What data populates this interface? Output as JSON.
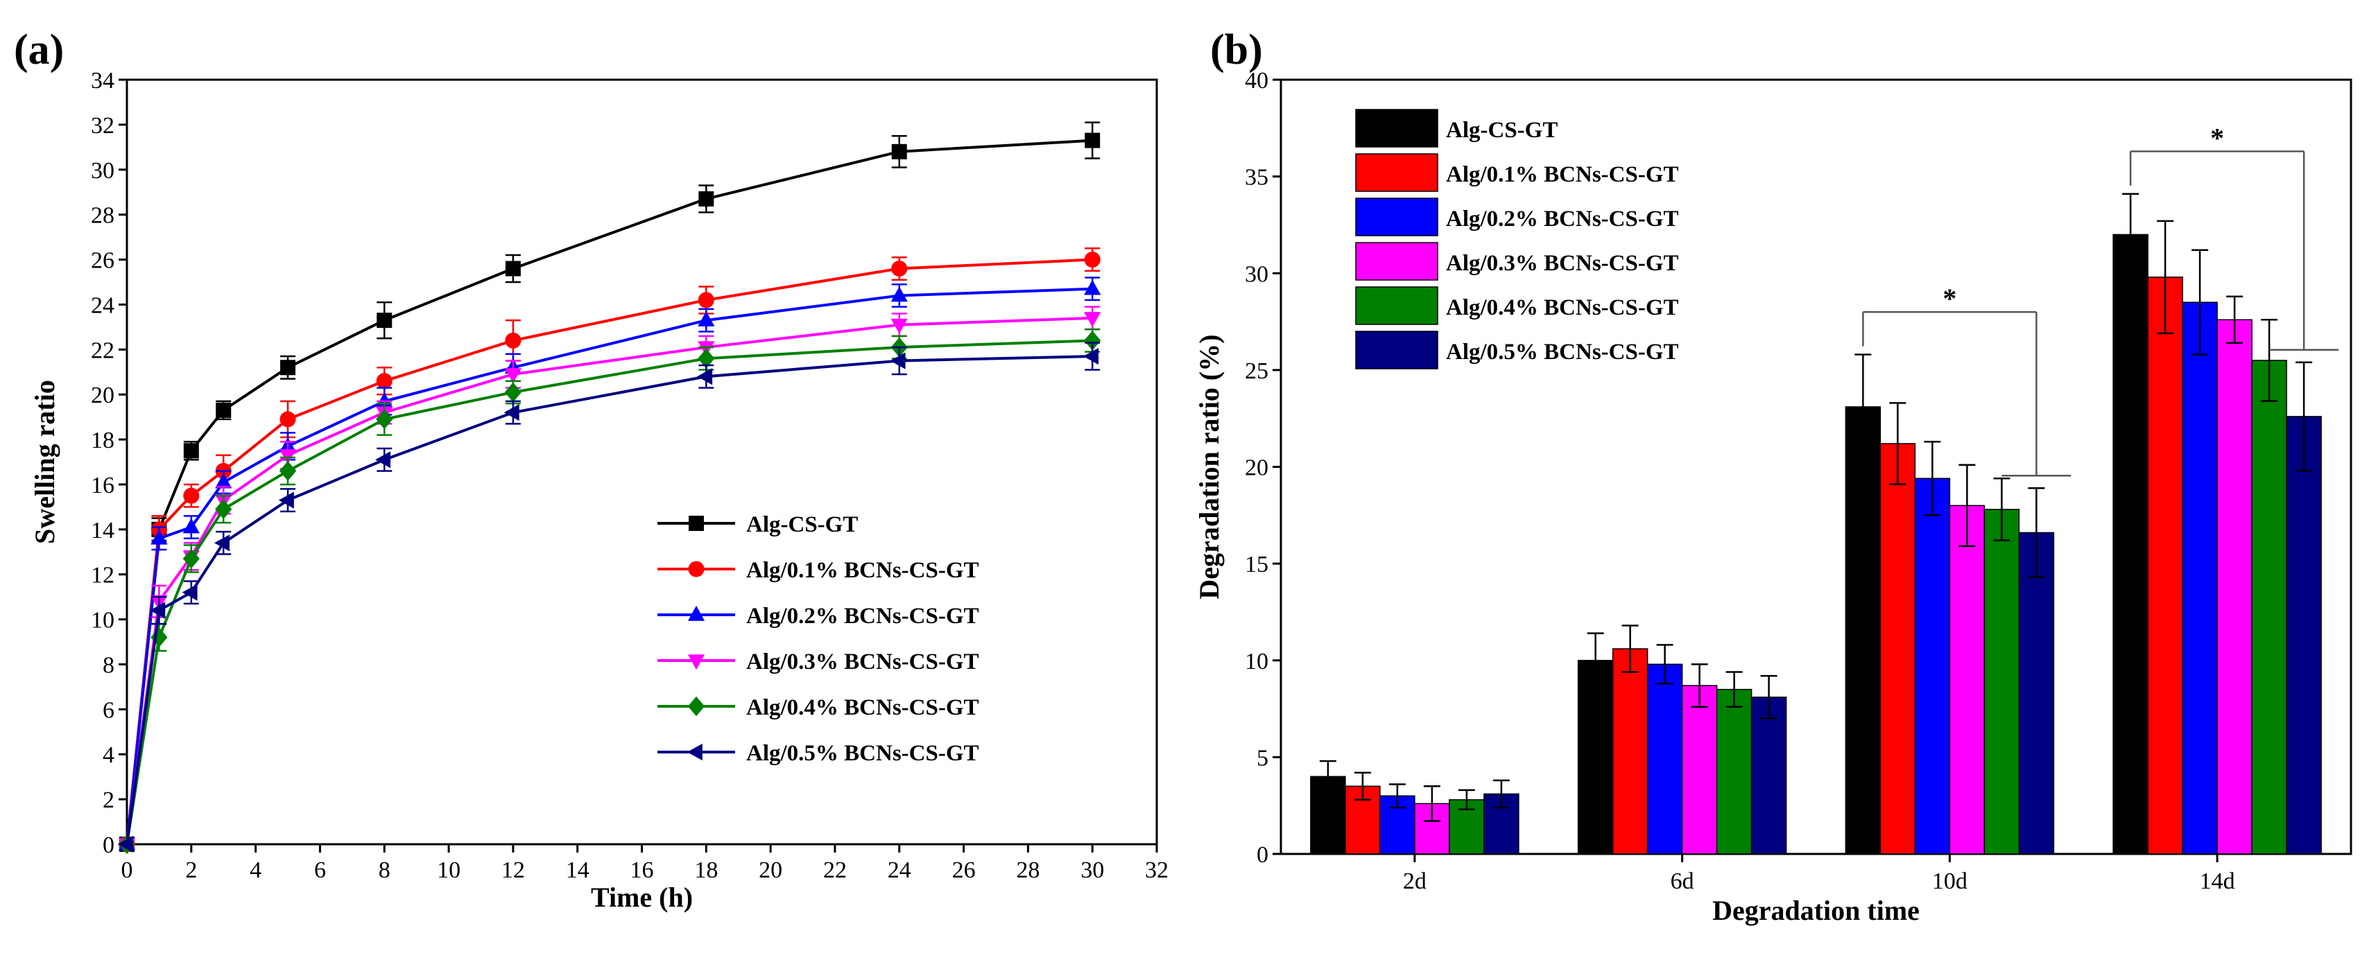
{
  "chart_data": [
    {
      "panel": "(a)",
      "type": "line",
      "title": "",
      "xlabel": "Time (h)",
      "ylabel": "Swelling ratio",
      "xlim": [
        0,
        32
      ],
      "ylim": [
        0,
        34
      ],
      "xticks": [
        0,
        2,
        4,
        6,
        8,
        10,
        12,
        14,
        16,
        18,
        20,
        22,
        24,
        26,
        28,
        30,
        32
      ],
      "yticks": [
        0,
        2,
        4,
        6,
        8,
        10,
        12,
        14,
        16,
        18,
        20,
        22,
        24,
        26,
        28,
        30,
        32,
        34
      ],
      "x": [
        0,
        1,
        2,
        3,
        5,
        8,
        12,
        18,
        24,
        30
      ],
      "legend_position": "center-right",
      "series": [
        {
          "name": "Alg-CS-GT",
          "color": "#000000",
          "marker": "square",
          "values": [
            0,
            14.0,
            17.5,
            19.3,
            21.2,
            23.3,
            25.6,
            28.7,
            30.8,
            31.3
          ],
          "errors": [
            0,
            0.5,
            0.4,
            0.4,
            0.5,
            0.8,
            0.6,
            0.6,
            0.7,
            0.8
          ]
        },
        {
          "name": "Alg/0.1% BCNs-CS-GT",
          "color": "#ff0000",
          "marker": "circle",
          "values": [
            0,
            14.0,
            15.5,
            16.6,
            18.9,
            20.6,
            22.4,
            24.2,
            25.6,
            26.0
          ],
          "errors": [
            0,
            0.6,
            0.5,
            0.7,
            0.8,
            0.6,
            0.9,
            0.6,
            0.5,
            0.5
          ]
        },
        {
          "name": "Alg/0.2% BCNs-CS-GT",
          "color": "#0000ff",
          "marker": "triangle-up",
          "values": [
            0,
            13.6,
            14.1,
            16.1,
            17.7,
            19.7,
            21.2,
            23.3,
            24.4,
            24.7
          ],
          "errors": [
            0,
            0.5,
            0.5,
            0.5,
            0.6,
            0.6,
            0.6,
            0.5,
            0.5,
            0.5
          ]
        },
        {
          "name": "Alg/0.3% BCNs-CS-GT",
          "color": "#ff00ff",
          "marker": "triangle-down",
          "values": [
            0,
            10.8,
            12.8,
            15.3,
            17.3,
            19.2,
            20.9,
            22.1,
            23.1,
            23.4
          ],
          "errors": [
            0,
            0.7,
            0.6,
            0.6,
            0.6,
            0.5,
            0.6,
            0.5,
            0.5,
            0.5
          ]
        },
        {
          "name": "Alg/0.4% BCNs-CS-GT",
          "color": "#008000",
          "marker": "diamond",
          "values": [
            0,
            9.2,
            12.7,
            14.9,
            16.6,
            18.9,
            20.1,
            21.6,
            22.1,
            22.4
          ],
          "errors": [
            0,
            0.6,
            0.6,
            0.6,
            0.6,
            0.7,
            0.5,
            0.5,
            0.5,
            0.5
          ]
        },
        {
          "name": "Alg/0.5% BCNs-CS-GT",
          "color": "#000080",
          "marker": "triangle-left",
          "values": [
            0,
            10.4,
            11.2,
            13.4,
            15.3,
            17.1,
            19.2,
            20.8,
            21.5,
            21.7
          ],
          "errors": [
            0,
            0.6,
            0.5,
            0.5,
            0.5,
            0.5,
            0.5,
            0.5,
            0.6,
            0.6
          ]
        }
      ]
    },
    {
      "panel": "(b)",
      "type": "bar",
      "title": "",
      "xlabel": "Degradation time",
      "ylabel": "Degradation ratio (%)",
      "ylim": [
        0,
        40
      ],
      "yticks": [
        0,
        5,
        10,
        15,
        20,
        25,
        30,
        35,
        40
      ],
      "categories": [
        "2d",
        "6d",
        "10d",
        "14d"
      ],
      "legend_position": "top-left",
      "series": [
        {
          "name": "Alg-CS-GT",
          "color": "#000000",
          "values": [
            4.0,
            10.0,
            23.1,
            32.0
          ],
          "errors": [
            0.8,
            1.4,
            2.7,
            2.1
          ]
        },
        {
          "name": "Alg/0.1% BCNs-CS-GT",
          "color": "#ff0000",
          "values": [
            3.5,
            10.6,
            21.2,
            29.8
          ],
          "errors": [
            0.7,
            1.2,
            2.1,
            2.9
          ]
        },
        {
          "name": "Alg/0.2% BCNs-CS-GT",
          "color": "#0000ff",
          "values": [
            3.0,
            9.8,
            19.4,
            28.5
          ],
          "errors": [
            0.6,
            1.0,
            1.9,
            2.7
          ]
        },
        {
          "name": "Alg/0.3% BCNs-CS-GT",
          "color": "#ff00ff",
          "values": [
            2.6,
            8.7,
            18.0,
            27.6
          ],
          "errors": [
            0.9,
            1.1,
            2.1,
            1.2
          ]
        },
        {
          "name": "Alg/0.4% BCNs-CS-GT",
          "color": "#008000",
          "values": [
            2.8,
            8.5,
            17.8,
            25.5
          ],
          "errors": [
            0.5,
            0.9,
            1.6,
            2.1
          ]
        },
        {
          "name": "Alg/0.5% BCNs-CS-GT",
          "color": "#000080",
          "values": [
            3.1,
            8.1,
            16.6,
            22.6
          ],
          "errors": [
            0.7,
            1.1,
            2.3,
            2.8
          ]
        }
      ],
      "annotations": [
        {
          "text": "*",
          "between_categories": "10d",
          "from_series": 0,
          "to_series": 5
        },
        {
          "text": "*",
          "between_categories": "14d",
          "from_series": 0,
          "to_series": 5
        }
      ]
    }
  ]
}
